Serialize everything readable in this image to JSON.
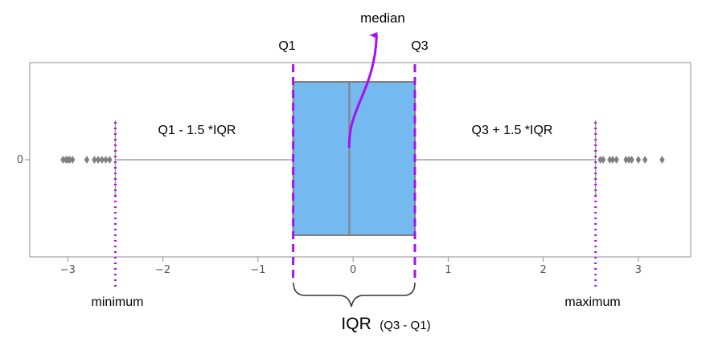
{
  "chart_data": {
    "type": "box",
    "category_label": "0",
    "xlim": [
      -3.4,
      3.55
    ],
    "xticks": [
      -3,
      -2,
      -1,
      0,
      1,
      2,
      3
    ],
    "xtick_labels": [
      "−3",
      "−2",
      "−1",
      "0",
      "1",
      "2",
      "3"
    ],
    "q1": -0.63,
    "median": -0.04,
    "q3": 0.65,
    "whisker_low": -2.5,
    "whisker_high": 2.55,
    "outliers_low": [
      -3.05,
      -3.02,
      -3.0,
      -2.98,
      -2.95,
      -2.8,
      -2.72,
      -2.68,
      -2.64,
      -2.6,
      -2.56
    ],
    "outliers_high": [
      2.6,
      2.63,
      2.7,
      2.73,
      2.77,
      2.87,
      2.9,
      2.93,
      3.0,
      3.07,
      3.25
    ],
    "box_color": "#74b9f0",
    "box_edge_color": "#808080",
    "guide_color": "#a80ff2"
  },
  "annotations": {
    "median": "median",
    "q1": "Q1",
    "q3": "Q3",
    "lower_fence": "Q1 - 1.5 *IQR",
    "upper_fence": "Q3 + 1.5 *IQR",
    "minimum": "minimum",
    "maximum": "maximum",
    "iqr_main": "IQR",
    "iqr_sub": "(Q3 - Q1)"
  }
}
